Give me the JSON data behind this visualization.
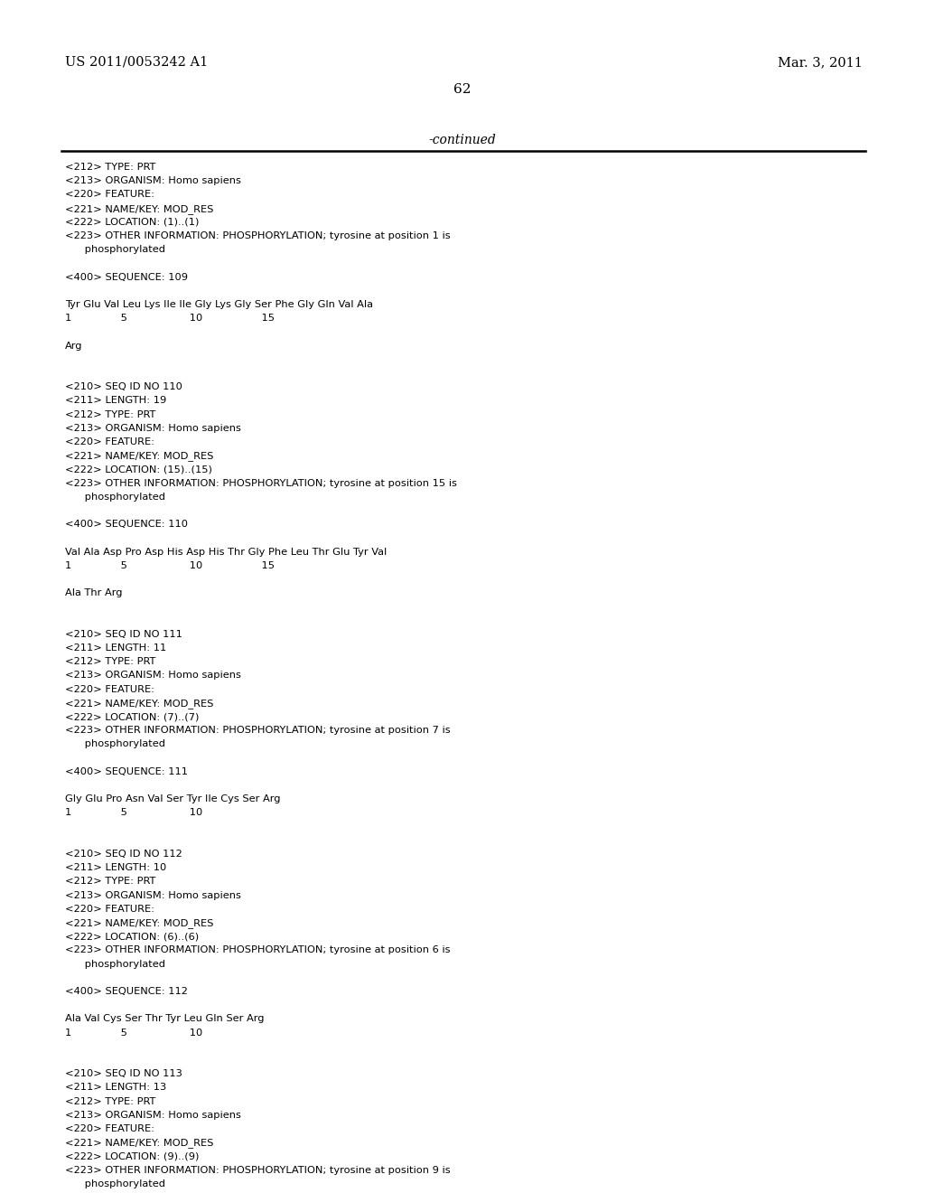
{
  "bg_color": "#ffffff",
  "header_left": "US 2011/0053242 A1",
  "header_right": "Mar. 3, 2011",
  "page_number": "62",
  "continued_text": "-continued",
  "font_mono": "Courier New",
  "font_serif": "DejaVu Serif",
  "content": [
    "<212> TYPE: PRT",
    "<213> ORGANISM: Homo sapiens",
    "<220> FEATURE:",
    "<221> NAME/KEY: MOD_RES",
    "<222> LOCATION: (1)..(1)",
    "<223> OTHER INFORMATION: PHOSPHORYLATION; tyrosine at position 1 is",
    "      phosphorylated",
    "",
    "<400> SEQUENCE: 109",
    "",
    "Tyr Glu Val Leu Lys Ile Ile Gly Lys Gly Ser Phe Gly Gln Val Ala",
    "1               5                   10                  15",
    "",
    "Arg",
    "",
    "",
    "<210> SEQ ID NO 110",
    "<211> LENGTH: 19",
    "<212> TYPE: PRT",
    "<213> ORGANISM: Homo sapiens",
    "<220> FEATURE:",
    "<221> NAME/KEY: MOD_RES",
    "<222> LOCATION: (15)..(15)",
    "<223> OTHER INFORMATION: PHOSPHORYLATION; tyrosine at position 15 is",
    "      phosphorylated",
    "",
    "<400> SEQUENCE: 110",
    "",
    "Val Ala Asp Pro Asp His Asp His Thr Gly Phe Leu Thr Glu Tyr Val",
    "1               5                   10                  15",
    "",
    "Ala Thr Arg",
    "",
    "",
    "<210> SEQ ID NO 111",
    "<211> LENGTH: 11",
    "<212> TYPE: PRT",
    "<213> ORGANISM: Homo sapiens",
    "<220> FEATURE:",
    "<221> NAME/KEY: MOD_RES",
    "<222> LOCATION: (7)..(7)",
    "<223> OTHER INFORMATION: PHOSPHORYLATION; tyrosine at position 7 is",
    "      phosphorylated",
    "",
    "<400> SEQUENCE: 111",
    "",
    "Gly Glu Pro Asn Val Ser Tyr Ile Cys Ser Arg",
    "1               5                   10",
    "",
    "",
    "<210> SEQ ID NO 112",
    "<211> LENGTH: 10",
    "<212> TYPE: PRT",
    "<213> ORGANISM: Homo sapiens",
    "<220> FEATURE:",
    "<221> NAME/KEY: MOD_RES",
    "<222> LOCATION: (6)..(6)",
    "<223> OTHER INFORMATION: PHOSPHORYLATION; tyrosine at position 6 is",
    "      phosphorylated",
    "",
    "<400> SEQUENCE: 112",
    "",
    "Ala Val Cys Ser Thr Tyr Leu Gln Ser Arg",
    "1               5                   10",
    "",
    "",
    "<210> SEQ ID NO 113",
    "<211> LENGTH: 13",
    "<212> TYPE: PRT",
    "<213> ORGANISM: Homo sapiens",
    "<220> FEATURE:",
    "<221> NAME/KEY: MOD_RES",
    "<222> LOCATION: (9)..(9)",
    "<223> OTHER INFORMATION: PHOSPHORYLATION; tyrosine at position 9 is",
    "      phosphorylated"
  ]
}
